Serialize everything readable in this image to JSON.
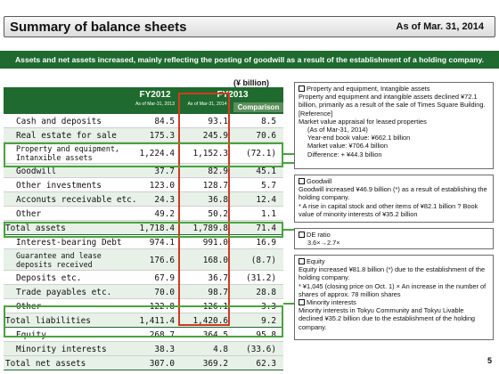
{
  "header": {
    "title": "Summary of balance sheets",
    "date": "As of Mar. 31, 2014"
  },
  "banner": "Assets and net assets increased, mainly reflecting the posting of goodwill as a result of the establishment of a holding company.",
  "table": {
    "unit": "(¥ billion)",
    "col_fy2012": "FY2012",
    "col_fy2013": "FY2013",
    "sub_fy2012": "As of Mar-31, 2013",
    "sub_fy2013": "As of Mar-31, 2014",
    "col_comparison": "Comparison",
    "rows": [
      {
        "label": "Cash and deposits",
        "fy2012": "84.5",
        "fy2013": "93.1",
        "comparison": "8.5"
      },
      {
        "label": "Real estate for sale",
        "fy2012": "175.3",
        "fy2013": "245.9",
        "comparison": "70.6"
      },
      {
        "label": "Property and equipment, Intanxible assets",
        "fy2012": "1,224.4",
        "fy2013": "1,152.3",
        "comparison": "(72.1)"
      },
      {
        "label": "Goodwill",
        "fy2012": "37.7",
        "fy2013": "82.9",
        "comparison": "45.1"
      },
      {
        "label": "Other investments",
        "fy2012": "123.0",
        "fy2013": "128.7",
        "comparison": "5.7"
      },
      {
        "label": "Acconuts receivable etc.",
        "fy2012": "24.3",
        "fy2013": "36.8",
        "comparison": "12.4"
      },
      {
        "label": "Other",
        "fy2012": "49.2",
        "fy2013": "50.2",
        "comparison": "1.1"
      },
      {
        "label": "Total assets",
        "fy2012": "1,718.4",
        "fy2013": "1,789.8",
        "comparison": "71.4"
      },
      {
        "label": "Interest-bearing Debt",
        "fy2012": "974.1",
        "fy2013": "991.0",
        "comparison": "16.9"
      },
      {
        "label": "Guarantee and lease deposits received",
        "fy2012": "176.6",
        "fy2013": "168.0",
        "comparison": "(8.7)"
      },
      {
        "label": "Deposits etc.",
        "fy2012": "67.9",
        "fy2013": "36.7",
        "comparison": "(31.2)"
      },
      {
        "label": "Trade payables etc.",
        "fy2012": "70.0",
        "fy2013": "98.7",
        "comparison": "28.8"
      },
      {
        "label": "Other",
        "fy2012": "122.8",
        "fy2013": "126.1",
        "comparison": "3.3"
      },
      {
        "label": "Total liabilities",
        "fy2012": "1,411.4",
        "fy2013": "1,420.6",
        "comparison": "9.2"
      },
      {
        "label": "Equity",
        "fy2012": "268.7",
        "fy2013": "364.5",
        "comparison": "95.8"
      },
      {
        "label": "Minority interests",
        "fy2012": "38.3",
        "fy2013": "4.8",
        "comparison": "(33.6)"
      },
      {
        "label": "Total net assets",
        "fy2012": "307.0",
        "fy2013": "369.2",
        "comparison": "62.3"
      }
    ]
  },
  "notes": {
    "ppe": {
      "heading": "Property and equipment, Intangible assets",
      "l1": "Property and equipment and intangible assets declined ¥72.1 billion, primarily as a result of the sale of Times Square Building.",
      "l2": "[Reference]",
      "l3": "Market value appraisal for leased properties",
      "l4": "(As of Mar-31, 2014)",
      "l5": "Year-end book value: ¥662.1 billion",
      "l6": "Market value: ¥706.4 billion",
      "l7": "Difference: + ¥44.3 billion"
    },
    "goodwill": {
      "heading": "Goodwill",
      "l1": "Goodwill increased ¥46.9 billion (*) as a result of establishing the holding company.",
      "l2": "* A rise in capital stock and other items of ¥82.1 billion ? Book value of minority interests of ¥35.2 billion"
    },
    "de": {
      "heading": "DE ratio",
      "l1": "3.6×→2.7×"
    },
    "equity": {
      "heading": "Equity",
      "l1": "Equity increased ¥81.8 billion (*) due to the establishment of the holding company.",
      "l2": "* ¥1,045 (closing price on Oct. 1) × An increase in the number of shares of approx. 78 million shares",
      "heading2": "Minority interests",
      "l3": "Minority interests in Tokyu Community and Tokyu Livable declined ¥35.2 billion due to the establishment of the holding company."
    }
  },
  "page_number": "5",
  "colors": {
    "brand_green": "#1f6a2e",
    "highlight_red": "#d23a22",
    "highlight_green": "#49a33e"
  }
}
